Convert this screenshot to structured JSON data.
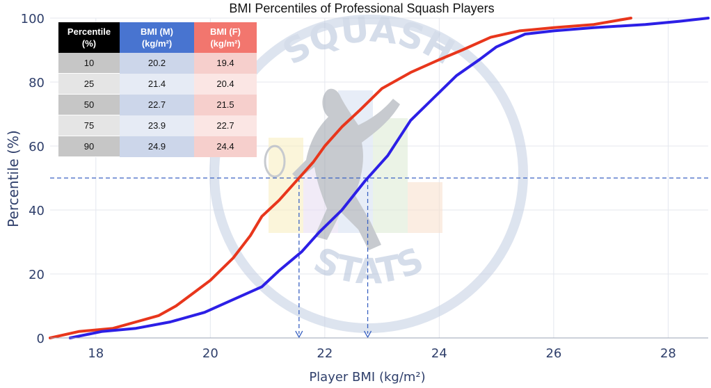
{
  "chart_data": {
    "type": "line",
    "title": "BMI Percentiles of Professional Squash Players",
    "xlabel": "Player BMI (kg/m²)",
    "ylabel": "Percentile (%)",
    "xlim": [
      17.2,
      28.7
    ],
    "ylim": [
      0,
      100
    ],
    "xticks": [
      18,
      20,
      22,
      24,
      26,
      28
    ],
    "yticks": [
      0,
      20,
      40,
      60,
      80,
      100
    ],
    "grid": true,
    "series": [
      {
        "color": "#e8361c",
        "x": [
          17.2,
          17.7,
          18.3,
          18.7,
          19.1,
          19.4,
          19.7,
          20.0,
          20.4,
          20.7,
          20.9,
          21.2,
          21.5,
          21.8,
          22.0,
          22.3,
          22.6,
          23.0,
          23.5,
          24.0,
          24.4,
          24.9,
          25.4,
          26.0,
          26.7,
          27.35
        ],
        "y": [
          0,
          2,
          3,
          5,
          7,
          10,
          14,
          18,
          25,
          32,
          38,
          43,
          49,
          55,
          60,
          66,
          71,
          78,
          83,
          87,
          90,
          94,
          96,
          97,
          98,
          100
        ]
      },
      {
        "color": "#2c1fe6",
        "x": [
          17.55,
          18.1,
          18.7,
          19.3,
          19.9,
          20.4,
          20.9,
          21.2,
          21.6,
          21.9,
          22.3,
          22.7,
          23.1,
          23.5,
          23.9,
          24.3,
          24.7,
          25.0,
          25.5,
          26.0,
          26.7,
          27.6,
          28.2,
          28.7
        ],
        "y": [
          0,
          2,
          3,
          5,
          8,
          12,
          16,
          21,
          27,
          33,
          40,
          49,
          57,
          68,
          75,
          82,
          87,
          91,
          95,
          96,
          97,
          98,
          99,
          100
        ]
      }
    ],
    "reference_lines": {
      "horizontal_y": 50,
      "vertical_x": [
        21.55,
        22.75
      ],
      "color": "#3a62c2"
    }
  },
  "table": {
    "headers": [
      "Percentile (%)",
      "BMI (M) (kg/m²)",
      "BMI (F) (kg/m²)"
    ],
    "header_lines": [
      [
        "Percentile",
        "(%)"
      ],
      [
        "BMI (M)",
        "(kg/m²)"
      ],
      [
        "BMI (F)",
        "(kg/m²)"
      ]
    ],
    "rows": [
      [
        "10",
        "20.2",
        "19.4"
      ],
      [
        "25",
        "21.4",
        "20.4"
      ],
      [
        "50",
        "22.7",
        "21.5"
      ],
      [
        "75",
        "23.9",
        "22.7"
      ],
      [
        "90",
        "24.9",
        "24.4"
      ]
    ]
  },
  "watermark": {
    "top_text": "SQUASH",
    "bottom_text": "STATS"
  }
}
